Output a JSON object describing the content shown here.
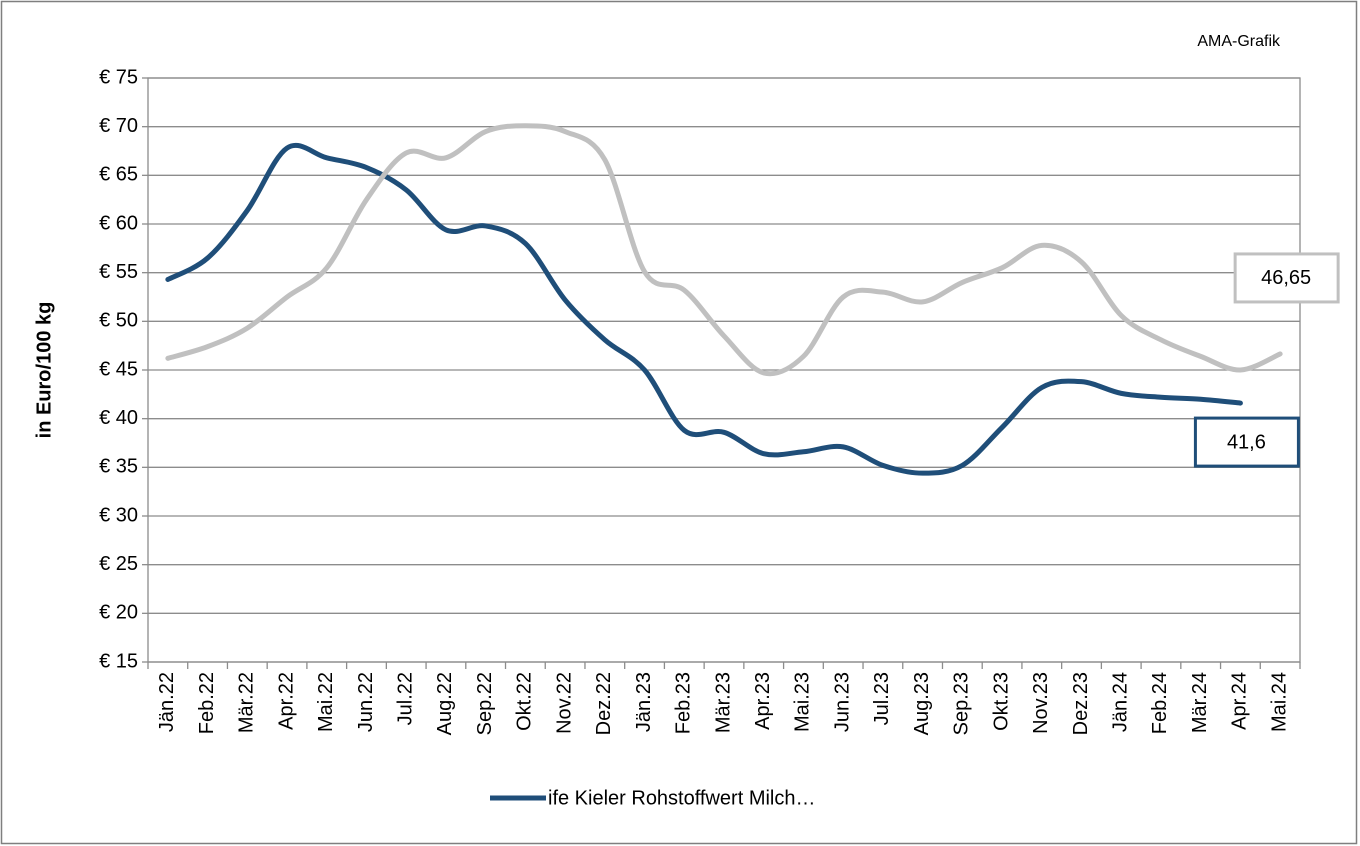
{
  "chart_data": {
    "type": "line",
    "annotation": "AMA-Grafik",
    "y_label": "in Euro/100 kg",
    "categories": [
      "Jän.22",
      "Feb.22",
      "Mär.22",
      "Apr.22",
      "Mai.22",
      "Jun.22",
      "Jul.22",
      "Aug.22",
      "Sep.22",
      "Okt.22",
      "Nov.22",
      "Dez.22",
      "Jän.23",
      "Feb.23",
      "Mär.23",
      "Apr.23",
      "Mai.23",
      "Jun.23",
      "Jul.23",
      "Aug.23",
      "Sep.23",
      "Okt.23",
      "Nov.23",
      "Dez.23",
      "Jän.24",
      "Feb.24",
      "Mär.24",
      "Apr.24",
      "Mai.24"
    ],
    "series": [
      {
        "name": "ife Kieler Rohstoffwert Milch…",
        "color": "#1f4e79",
        "values": [
          54.3,
          56.5,
          61.4,
          67.8,
          66.8,
          65.8,
          63.5,
          59.4,
          59.8,
          58.0,
          52.2,
          48.1,
          45.0,
          38.8,
          38.6,
          36.4,
          36.6,
          37.1,
          35.2,
          34.4,
          35.2,
          39.1,
          43.2,
          43.8,
          42.6,
          42.2,
          42.0,
          41.6,
          null
        ],
        "value_labels": [
          null,
          null,
          null,
          null,
          null,
          null,
          null,
          null,
          null,
          null,
          null,
          null,
          null,
          null,
          null,
          null,
          null,
          null,
          null,
          null,
          null,
          null,
          null,
          null,
          null,
          null,
          null,
          "41,6",
          null
        ]
      },
      {
        "color": "#c0c0c0",
        "values": [
          46.2,
          47.4,
          49.3,
          52.5,
          55.5,
          62.5,
          67.3,
          66.8,
          69.5,
          70.1,
          69.5,
          66.6,
          55.1,
          53.2,
          48.5,
          44.7,
          46.4,
          52.5,
          53.0,
          52.0,
          54.0,
          55.5,
          57.8,
          56.1,
          50.6,
          48.1,
          46.4,
          45.0,
          46.65
        ],
        "value_labels": [
          null,
          null,
          null,
          null,
          null,
          null,
          null,
          null,
          null,
          null,
          null,
          null,
          null,
          null,
          null,
          null,
          null,
          null,
          null,
          null,
          null,
          null,
          null,
          null,
          null,
          null,
          null,
          null,
          "46,65"
        ]
      }
    ],
    "ylim": [
      15,
      75
    ],
    "yticks": [
      {
        "value": 15,
        "label": "€ 15"
      },
      {
        "value": 20,
        "label": "€ 20"
      },
      {
        "value": 25,
        "label": "€ 25"
      },
      {
        "value": 30,
        "label": "€ 30"
      },
      {
        "value": 35,
        "label": "€ 35"
      },
      {
        "value": 40,
        "label": "€ 40"
      },
      {
        "value": 45,
        "label": "€ 45"
      },
      {
        "value": 50,
        "label": "€ 50"
      },
      {
        "value": 55,
        "label": "€ 55"
      },
      {
        "value": 60,
        "label": "€ 60"
      },
      {
        "value": 65,
        "label": "€ 65"
      },
      {
        "value": 70,
        "label": "€ 70"
      },
      {
        "value": 75,
        "label": "€ 75"
      }
    ],
    "grid": true
  }
}
